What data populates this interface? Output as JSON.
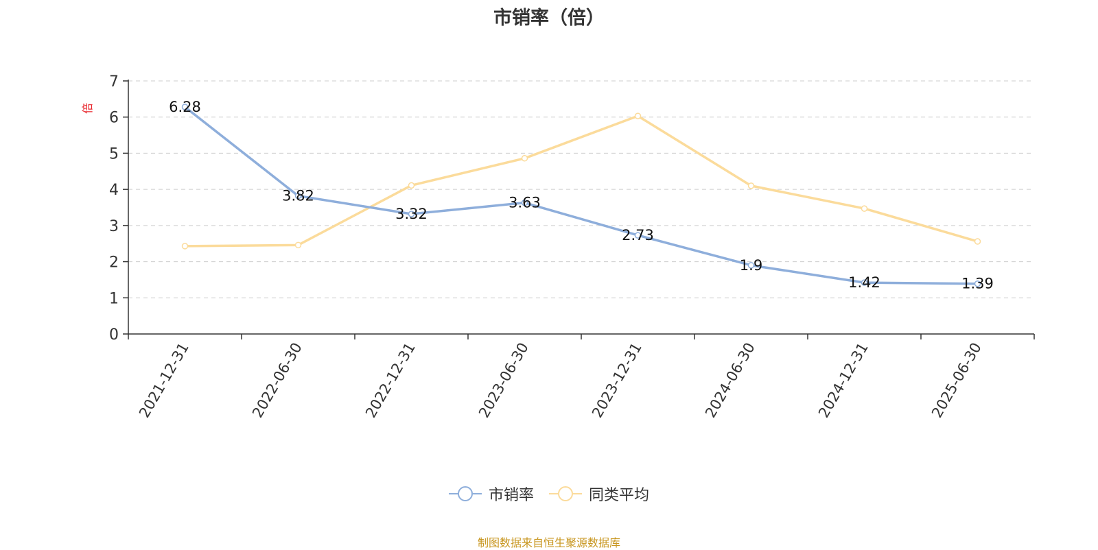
{
  "chart_data": {
    "type": "line",
    "title": "市销率（倍）",
    "ylabel": "倍",
    "xlabel": "",
    "ylim": [
      0,
      7
    ],
    "yticks": [
      0,
      1,
      2,
      3,
      4,
      5,
      6,
      7
    ],
    "categories": [
      "2021-12-31",
      "2022-06-30",
      "2022-12-31",
      "2023-06-30",
      "2023-12-31",
      "2024-06-30",
      "2024-12-31",
      "2025-06-30"
    ],
    "series": [
      {
        "name": "市销率",
        "color": "#8eaedb",
        "values": [
          6.28,
          3.82,
          3.32,
          3.63,
          2.73,
          1.9,
          1.42,
          1.39
        ],
        "labels": [
          "6.28",
          "3.82",
          "3.32",
          "3.63",
          "2.73",
          "1.9",
          "1.42",
          "1.39"
        ]
      },
      {
        "name": "同类平均",
        "color": "#fbdb9b",
        "values": [
          2.43,
          2.46,
          4.11,
          4.86,
          6.03,
          4.1,
          3.47,
          2.56
        ]
      }
    ],
    "grid": true,
    "legend_position": "bottom-center",
    "ylabel_color": "#e8242b"
  },
  "source": {
    "text": "制图数据来自恒生聚源数据库",
    "color": "#c8961f"
  }
}
